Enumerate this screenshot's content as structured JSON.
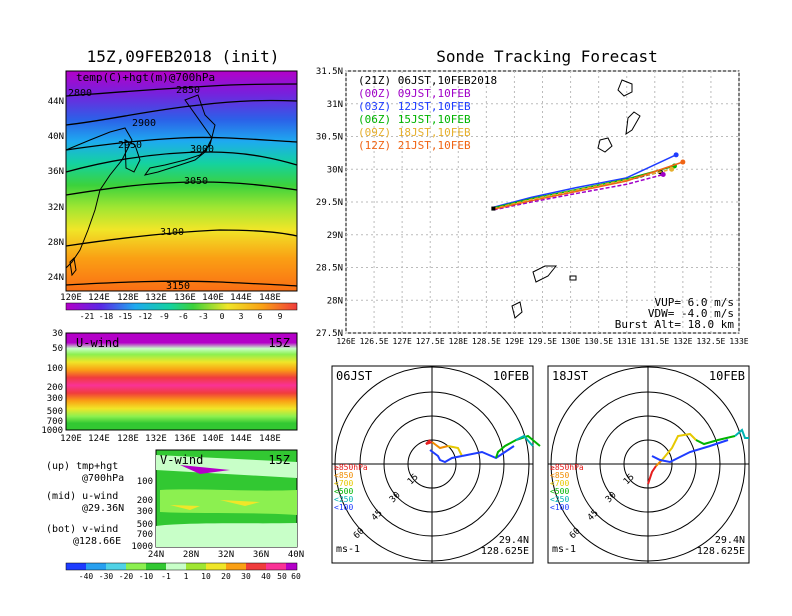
{
  "left": {
    "title": "15Z,09FEB2018 (init)",
    "map_label": "temp(C)+hgt(m)@700hPa",
    "contours": [
      "2800",
      "2850",
      "2900",
      "2950",
      "3000",
      "3050",
      "3100",
      "3150"
    ],
    "lat_ticks": [
      "44N",
      "40N",
      "36N",
      "32N",
      "28N",
      "24N"
    ],
    "lon_ticks": [
      "120E",
      "124E",
      "128E",
      "132E",
      "136E",
      "140E",
      "144E",
      "148E"
    ],
    "temp_cbar": [
      "-21",
      "-18",
      "-15",
      "-12",
      "-9",
      "-6",
      "-3",
      "0",
      "3",
      "6",
      "9"
    ],
    "uwind_label": "U-wind",
    "uwind_time": "15Z",
    "p_ticks": [
      "30",
      "50",
      "100",
      "200",
      "300",
      "500",
      "700",
      "1000"
    ],
    "vwind_label": "V-wind",
    "vwind_time": "15Z",
    "vwind_p_ticks": [
      "100",
      "200",
      "300",
      "500",
      "700",
      "1000"
    ],
    "vwind_lat_ticks": [
      "24N",
      "28N",
      "32N",
      "36N",
      "40N"
    ],
    "wind_cbar": [
      "-40",
      "-30",
      "-20",
      "-10",
      "-1",
      "1",
      "10",
      "20",
      "30",
      "40",
      "50",
      "60"
    ],
    "notes": [
      {
        "label": "(up) tmp+hgt",
        "value": "@700hPa"
      },
      {
        "label": "(mid) u-wind",
        "value": "@29.36N"
      },
      {
        "label": "(bot) v-wind",
        "value": "@128.66E"
      }
    ]
  },
  "right": {
    "title": "Sonde Tracking Forecast",
    "legend": [
      {
        "code": "(21Z)",
        "label": "06JST,10FEB2018",
        "color": "#000000"
      },
      {
        "code": "(00Z)",
        "label": "09JST,10FEB",
        "color": "#a000c8"
      },
      {
        "code": "(03Z)",
        "label": "12JST,10FEB",
        "color": "#1e3cff"
      },
      {
        "code": "(06Z)",
        "label": "15JST,10FEB",
        "color": "#00b400"
      },
      {
        "code": "(09Z)",
        "label": "18JST,10FEB",
        "color": "#e6af2d"
      },
      {
        "code": "(12Z)",
        "label": "21JST,10FEB",
        "color": "#f06414"
      }
    ],
    "params": [
      "VUP= 6.0 m/s",
      "VDW= -4.0 m/s",
      "Burst Alt= 18.0 km"
    ],
    "lat_ticks": [
      "31.5N",
      "31N",
      "30.5N",
      "30N",
      "29.5N",
      "29N",
      "28.5N",
      "28N",
      "27.5N"
    ],
    "lon_ticks": [
      "126E",
      "126.5E",
      "127E",
      "127.5E",
      "128E",
      "128.5E",
      "129E",
      "129.5E",
      "130E",
      "130.5E",
      "131E",
      "131.5E",
      "132E",
      "132.5E",
      "133E"
    ]
  },
  "hodographs": [
    {
      "time": "06JST",
      "date": "10FEB",
      "lat": "29.4N",
      "lon": "128.625E",
      "unit": "ms-1",
      "rings": [
        "15",
        "30",
        "45",
        "60"
      ]
    },
    {
      "time": "18JST",
      "date": "10FEB",
      "lat": "29.4N",
      "lon": "128.625E",
      "unit": "ms-1",
      "rings": [
        "15",
        "30",
        "45",
        "60"
      ]
    }
  ],
  "hodo_legend": [
    {
      "label": "≥850hPa",
      "color": "#e61e1e"
    },
    {
      "label": "<850",
      "color": "#f08c00"
    },
    {
      "label": "<700",
      "color": "#e6c800"
    },
    {
      "label": "<500",
      "color": "#00b400"
    },
    {
      "label": "<250",
      "color": "#00b4b4"
    },
    {
      "label": "<100",
      "color": "#1e3cff"
    }
  ],
  "chart_data": {
    "type": "line",
    "title": "Sonde Tracking Forecast",
    "xlim": [
      126,
      133
    ],
    "ylim": [
      27.5,
      31.5
    ],
    "launch": {
      "lon": 128.625,
      "lat": 29.4
    },
    "series": [
      {
        "name": "(21Z) 06JST,10FEB2018",
        "points": [
          [
            128.63,
            29.4
          ],
          [
            129.2,
            29.53
          ],
          [
            130.0,
            29.66
          ],
          [
            131.0,
            29.83
          ],
          [
            131.6,
            29.96
          ]
        ]
      },
      {
        "name": "(00Z) 09JST,10FEB",
        "points": [
          [
            128.63,
            29.38
          ],
          [
            129.3,
            29.5
          ],
          [
            130.1,
            29.63
          ],
          [
            131.0,
            29.77
          ],
          [
            131.65,
            29.92
          ]
        ]
      },
      {
        "name": "(03Z) 12JST,10FEB",
        "points": [
          [
            128.63,
            29.42
          ],
          [
            129.3,
            29.57
          ],
          [
            130.1,
            29.72
          ],
          [
            131.0,
            29.87
          ],
          [
            131.88,
            30.22
          ]
        ]
      },
      {
        "name": "(06Z) 15JST,10FEB",
        "points": [
          [
            128.63,
            29.41
          ],
          [
            129.3,
            29.55
          ],
          [
            130.1,
            29.69
          ],
          [
            131.0,
            29.85
          ],
          [
            131.85,
            30.05
          ]
        ]
      },
      {
        "name": "(09Z) 18JST,10FEB",
        "points": [
          [
            128.63,
            29.4
          ],
          [
            129.3,
            29.54
          ],
          [
            130.1,
            29.68
          ],
          [
            131.0,
            29.84
          ],
          [
            131.8,
            30.0
          ]
        ]
      },
      {
        "name": "(12Z) 21JST,10FEB",
        "points": [
          [
            128.63,
            29.39
          ],
          [
            129.3,
            29.52
          ],
          [
            130.1,
            29.66
          ],
          [
            131.0,
            29.82
          ],
          [
            132.0,
            30.11
          ]
        ]
      }
    ]
  }
}
